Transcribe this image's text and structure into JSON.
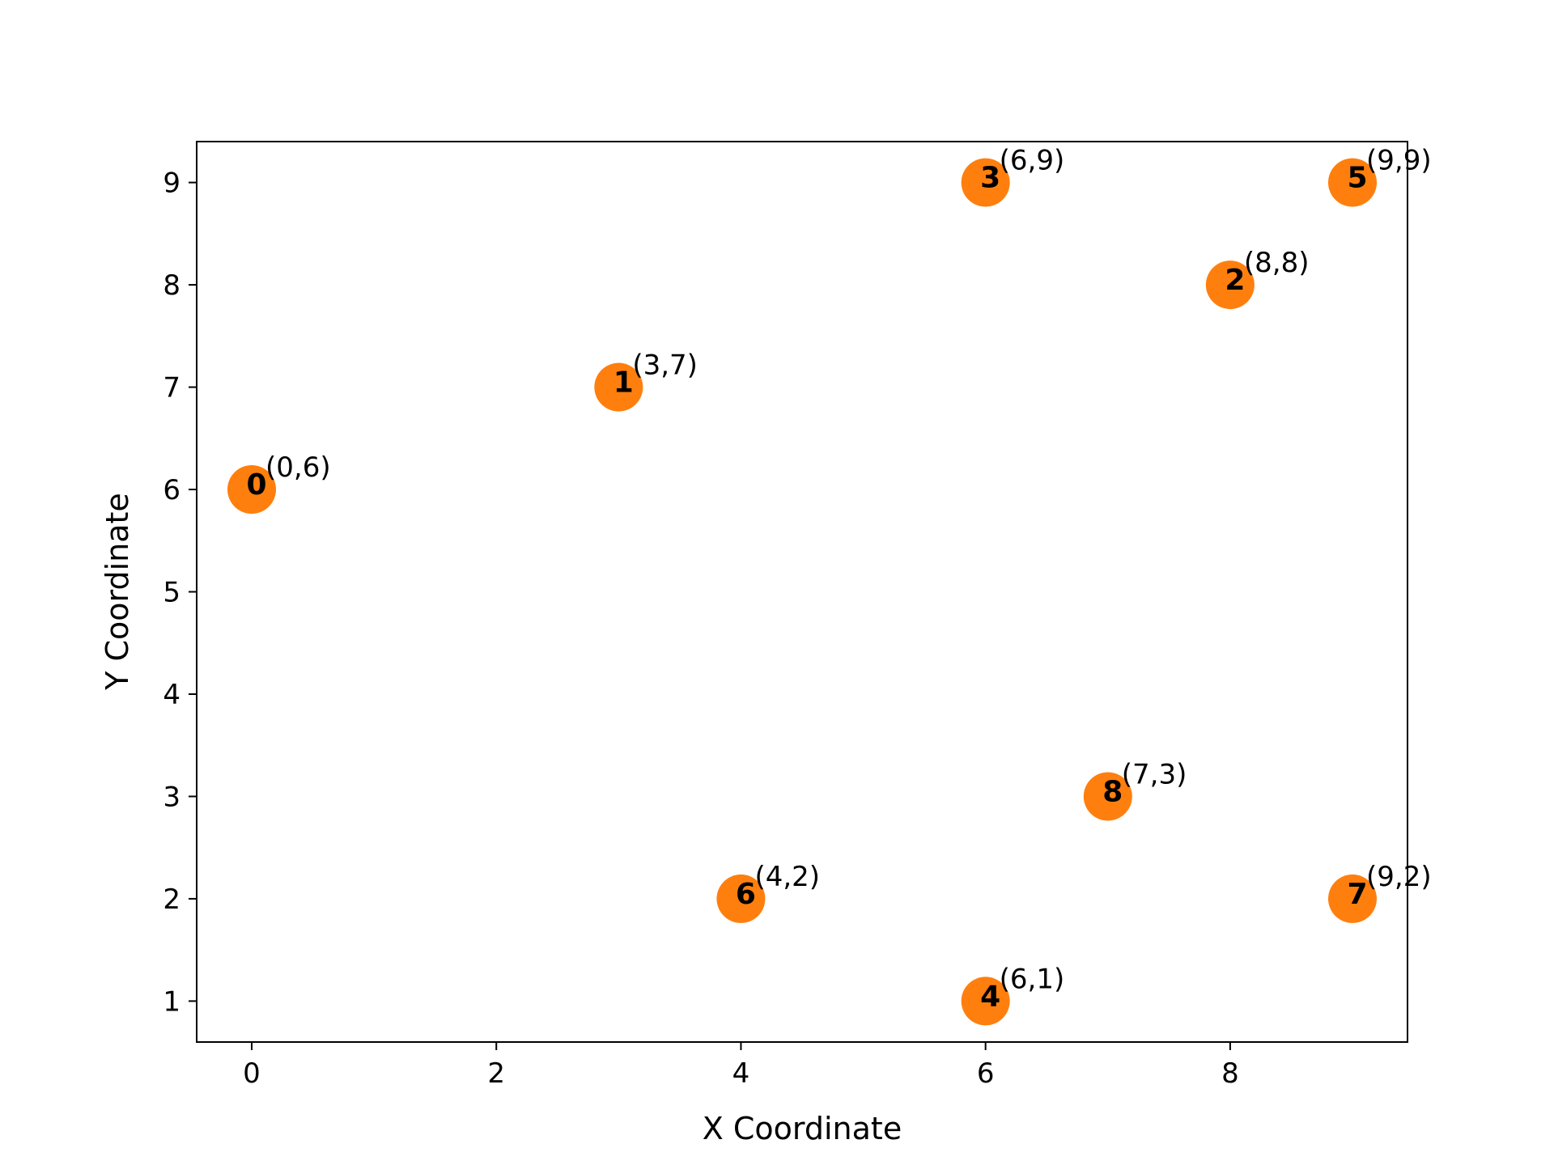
{
  "chart_data": {
    "type": "scatter",
    "title": "",
    "xlabel": "X Coordinate",
    "ylabel": "Y Coordinate",
    "xlim": [
      -0.45,
      9.45
    ],
    "ylim": [
      0.6,
      9.4
    ],
    "xticks": [
      0,
      2,
      4,
      6,
      8
    ],
    "yticks": [
      1,
      2,
      3,
      4,
      5,
      6,
      7,
      8,
      9
    ],
    "grid": false,
    "marker_color": "#ff7f0e",
    "points": [
      {
        "id": "0",
        "x": 0,
        "y": 6,
        "label": "(0,6)"
      },
      {
        "id": "1",
        "x": 3,
        "y": 7,
        "label": "(3,7)"
      },
      {
        "id": "2",
        "x": 8,
        "y": 8,
        "label": "(8,8)"
      },
      {
        "id": "3",
        "x": 6,
        "y": 9,
        "label": "(6,9)"
      },
      {
        "id": "4",
        "x": 6,
        "y": 1,
        "label": "(6,1)"
      },
      {
        "id": "5",
        "x": 9,
        "y": 9,
        "label": "(9,9)"
      },
      {
        "id": "6",
        "x": 4,
        "y": 2,
        "label": "(4,2)"
      },
      {
        "id": "7",
        "x": 9,
        "y": 2,
        "label": "(9,2)"
      },
      {
        "id": "8",
        "x": 7,
        "y": 3,
        "label": "(7,3)"
      }
    ]
  }
}
